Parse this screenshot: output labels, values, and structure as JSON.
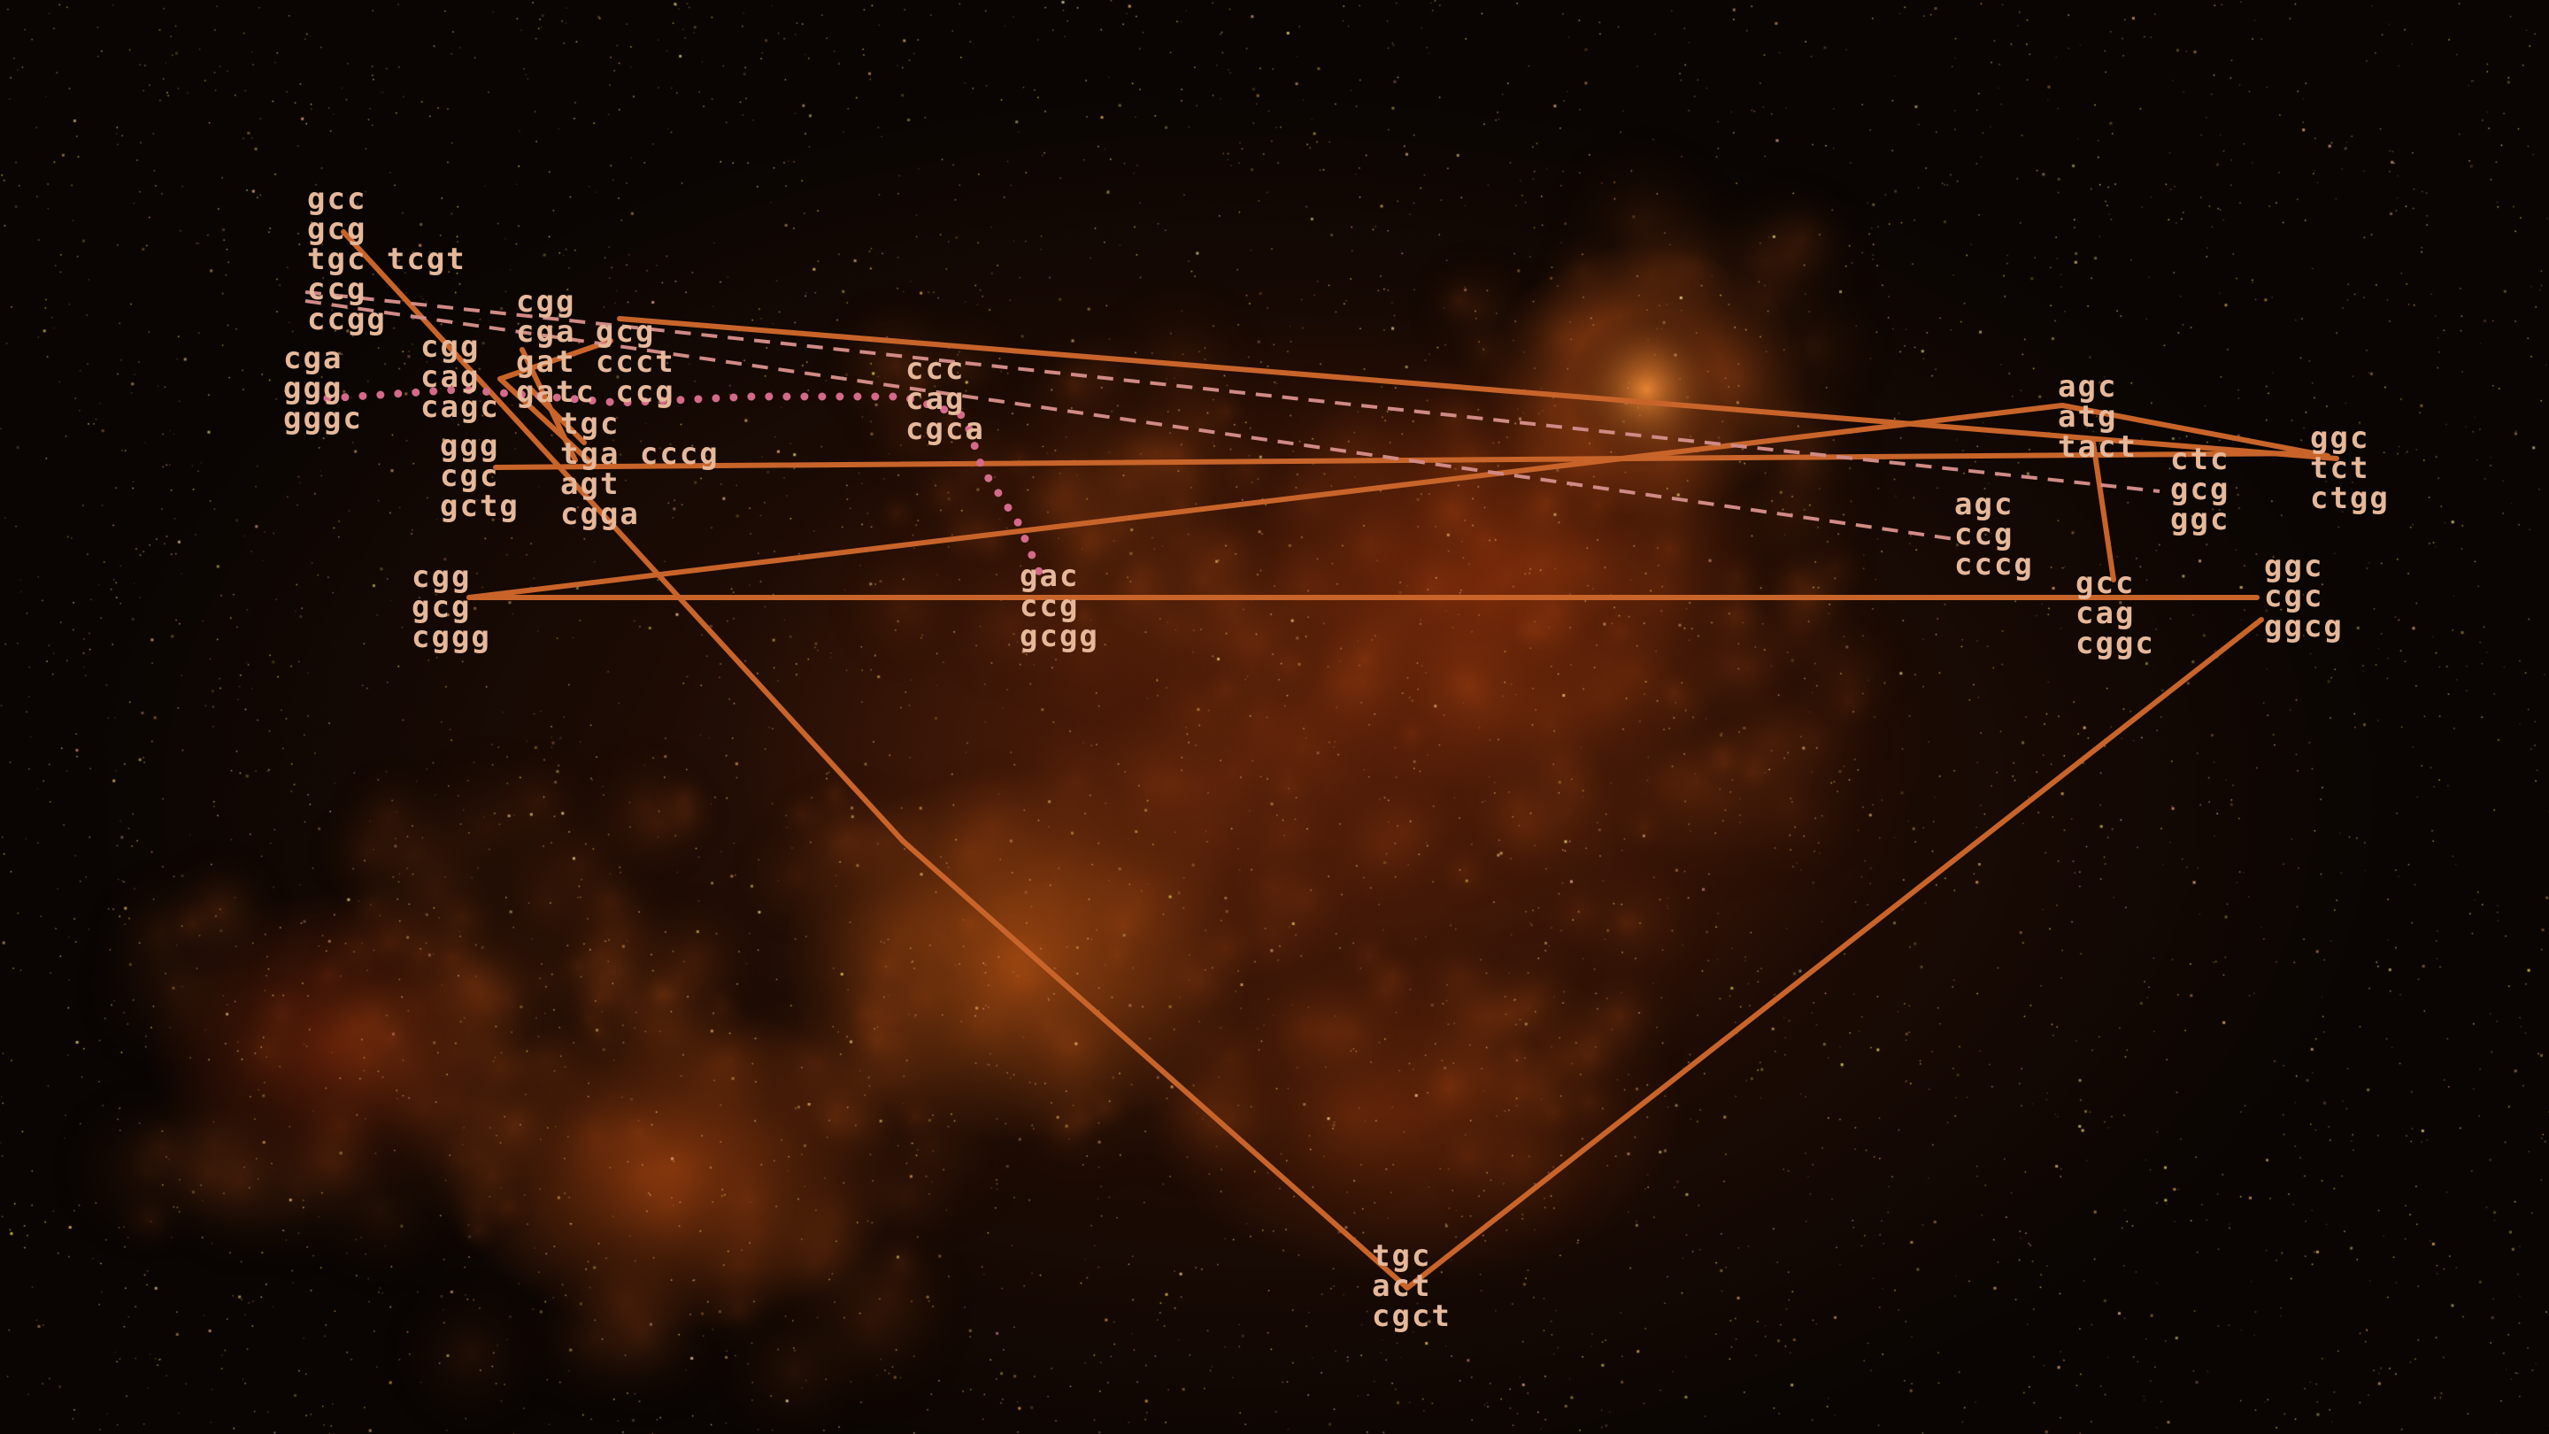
{
  "colors": {
    "line": "#c8642a",
    "dashed": "#d08a86",
    "dotted": "#d46a8a",
    "label": "#e6b89a"
  },
  "labels": {
    "n1": [
      "gcc",
      "gcg",
      "tgc tcgt",
      "ccg",
      "ccgg"
    ],
    "n2": [
      "cga",
      "ggg",
      "gggc"
    ],
    "n3": [
      "cgg",
      "cag",
      "cagc"
    ],
    "n4": [
      "cgg",
      "cga gcg",
      "gat ccct",
      "gatc ccg"
    ],
    "n5": [
      "tgc",
      "tga cccg",
      "agt",
      "cgga"
    ],
    "n6": [
      "ggg",
      "cgc",
      "gctg"
    ],
    "n7": [
      "cgg",
      "gcg",
      "cggg"
    ],
    "n8": [
      "ccc",
      "cag",
      "cgca"
    ],
    "n9": [
      "gac",
      "ccg",
      "gcgg"
    ],
    "n10": [
      "agc",
      "atg",
      "tact"
    ],
    "n11": [
      "agc",
      "ccg",
      "cccg"
    ],
    "n12": [
      "ctc",
      "gcg",
      "ggc"
    ],
    "n13": [
      "ggc",
      "tct",
      "ctgg"
    ],
    "n14": [
      "gcc",
      "cag",
      "cggc"
    ],
    "n15": [
      "ggc",
      "cgc",
      "ggcg"
    ],
    "n16": [
      "tgc",
      "act",
      "cgct"
    ]
  }
}
